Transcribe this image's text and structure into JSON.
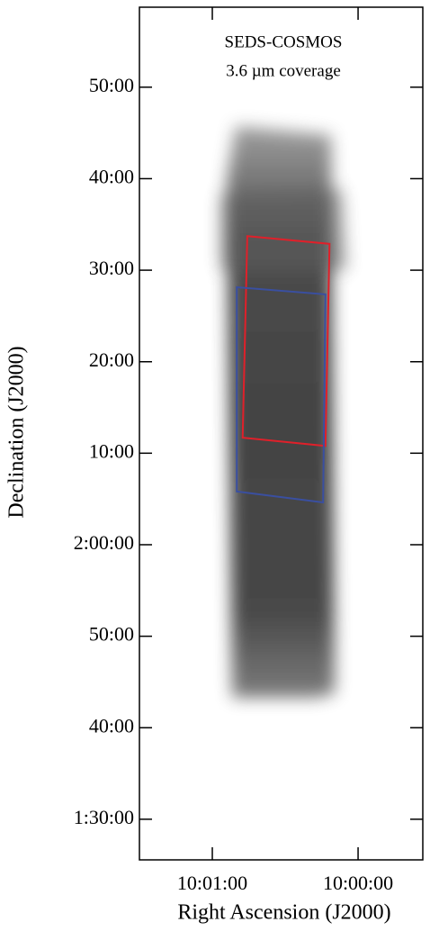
{
  "chart_data": {
    "type": "coverage-map",
    "title": "SEDS-COSMOS",
    "subtitle": "3.6 µm coverage",
    "x_label": "Right Ascension (J2000)",
    "y_label": "Declination (J2000)",
    "xlim": [
      150.375,
      149.889
    ],
    "ylim": [
      1.426,
      2.979
    ],
    "xticks": [
      {
        "value": 150.25,
        "label": "10:01:00"
      },
      {
        "value": 150.0,
        "label": "10:00:00"
      }
    ],
    "yticks": [
      {
        "value": 2.8333,
        "label": "50:00"
      },
      {
        "value": 2.6667,
        "label": "40:00"
      },
      {
        "value": 2.5,
        "label": "30:00"
      },
      {
        "value": 2.3333,
        "label": "20:00"
      },
      {
        "value": 2.1667,
        "label": "10:00"
      },
      {
        "value": 2.0,
        "label": "2:00:00"
      },
      {
        "value": 1.8333,
        "label": "50:00"
      },
      {
        "value": 1.6667,
        "label": "40:00"
      },
      {
        "value": 1.5,
        "label": "1:30:00"
      }
    ],
    "regions": [
      {
        "color": "#e0202a",
        "x": [
          150.19,
          150.049,
          150.056,
          150.198
        ],
        "y": [
          2.562,
          2.548,
          2.18,
          2.195
        ]
      },
      {
        "color": "#3a4fa0",
        "x": [
          150.208,
          150.056,
          150.06,
          150.208
        ],
        "y": [
          2.469,
          2.456,
          2.077,
          2.097
        ]
      }
    ]
  }
}
